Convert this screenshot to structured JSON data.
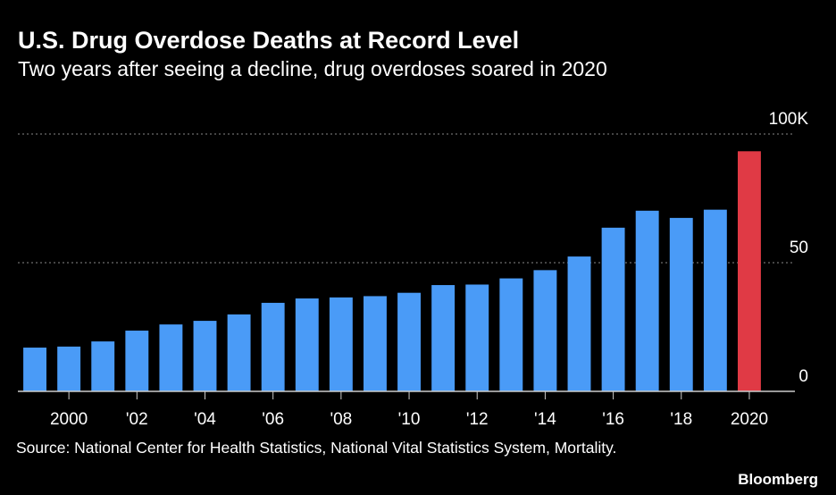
{
  "chart_data": {
    "type": "bar",
    "title": "U.S. Drug Overdose Deaths at Record Level",
    "subtitle": "Two years after seeing a decline, drug overdoses soared in 2020",
    "source": "Source: National Center for Health Statistics, National Vital Statistics System, Mortality.",
    "brand": "Bloomberg",
    "categories": [
      null,
      "2000",
      null,
      "'02",
      null,
      "'04",
      null,
      "'06",
      null,
      "'08",
      null,
      "'10",
      null,
      "'12",
      null,
      "'14",
      null,
      "'16",
      null,
      "'18",
      null,
      "2020"
    ],
    "values": [
      17.0,
      17.4,
      19.4,
      23.6,
      26.0,
      27.4,
      29.9,
      34.4,
      36.1,
      36.5,
      37.0,
      38.3,
      41.3,
      41.5,
      43.9,
      47.1,
      52.4,
      63.6,
      70.2,
      67.4,
      70.6,
      93.3
    ],
    "colors": [
      "#4a9bf7",
      "#4a9bf7",
      "#4a9bf7",
      "#4a9bf7",
      "#4a9bf7",
      "#4a9bf7",
      "#4a9bf7",
      "#4a9bf7",
      "#4a9bf7",
      "#4a9bf7",
      "#4a9bf7",
      "#4a9bf7",
      "#4a9bf7",
      "#4a9bf7",
      "#4a9bf7",
      "#4a9bf7",
      "#4a9bf7",
      "#4a9bf7",
      "#4a9bf7",
      "#4a9bf7",
      "#4a9bf7",
      "#e03a45"
    ],
    "ylim": [
      0,
      100
    ],
    "yticks": [
      0,
      50,
      {
        "value": 100,
        "label": "100K"
      }
    ],
    "grid": true
  }
}
